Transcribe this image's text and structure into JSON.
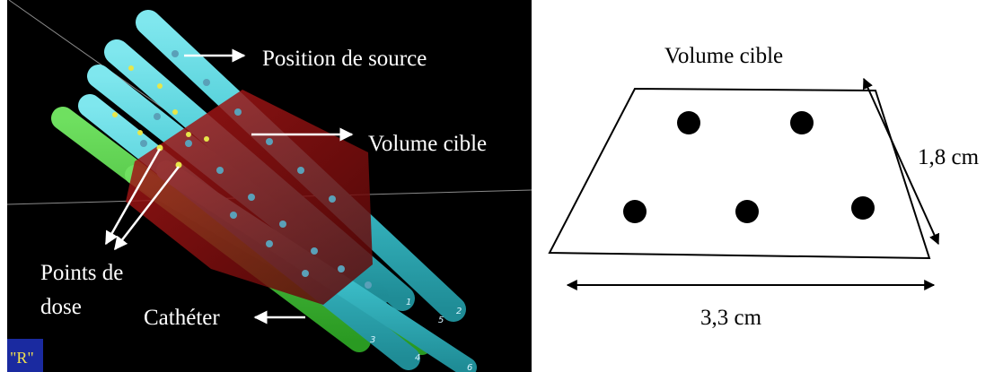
{
  "left_panel": {
    "label_source": "Position de source",
    "label_volume": "Volume cible",
    "label_points_line1": "Points de",
    "label_points_line2": "dose",
    "label_catheter": "Cathéter",
    "catheter_numbers": [
      "1",
      "2",
      "3",
      "4",
      "5",
      "6"
    ],
    "corner_glyph": "\"R\"",
    "colors": {
      "background": "#000000",
      "catheter_cyan": "#3fc4cf",
      "catheter_green": "#3fbf33",
      "target_volume": "#8b1010",
      "dose_point": "#e6e64a"
    }
  },
  "right_panel": {
    "title": "Volume cible",
    "height_label": "1,8 cm",
    "width_label": "3,3 cm"
  }
}
